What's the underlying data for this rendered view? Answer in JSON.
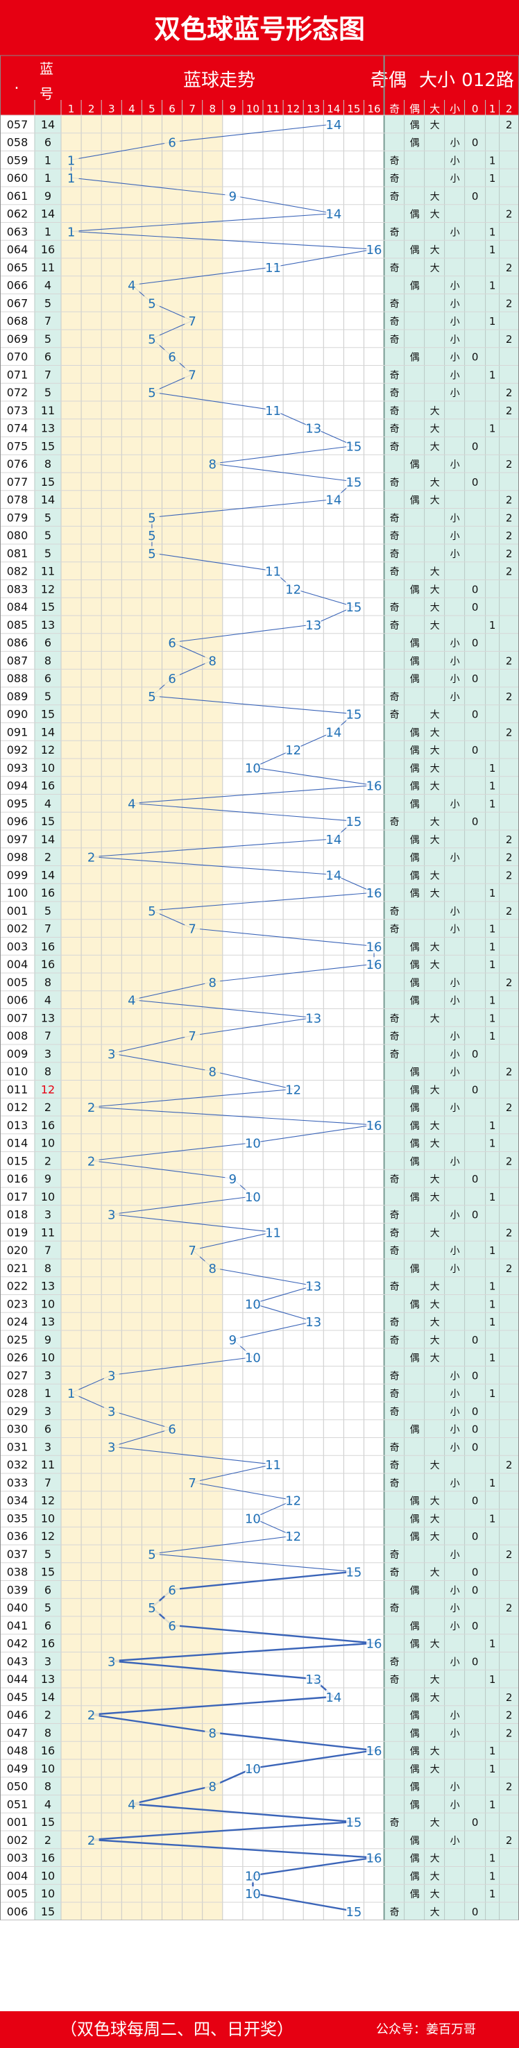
{
  "title": "双色球蓝号形态图",
  "header": {
    "dot": ".",
    "blue": "蓝号",
    "trend": "蓝球走势",
    "odd": "奇",
    "even": "偶",
    "big": "大",
    "small": "小",
    "road": "012路",
    "odd_short": "奇",
    "even_short": "偶",
    "big_short": "大",
    "small_short": "小",
    "r0": "0",
    "r1": "1",
    "r2": "2"
  },
  "column_numbers": [
    "1",
    "2",
    "3",
    "4",
    "5",
    "6",
    "7",
    "8",
    "9",
    "10",
    "11",
    "12",
    "13",
    "14",
    "15",
    "16"
  ],
  "footer": {
    "schedule": "（双色球每周二、四、日开奖）",
    "account_label": "公众号：姜百万哥"
  },
  "colors": {
    "header_red": "#e60012",
    "label_blue": "#1f6fb5",
    "line_blue": "#3a64b8",
    "highlight": "#fdf3d3",
    "teal": "#d8f0ea"
  },
  "rows": [
    {
      "issue": "057",
      "blue": "14"
    },
    {
      "issue": "058",
      "blue": "6"
    },
    {
      "issue": "059",
      "blue": "1"
    },
    {
      "issue": "060",
      "blue": "1"
    },
    {
      "issue": "061",
      "blue": "9"
    },
    {
      "issue": "062",
      "blue": "14"
    },
    {
      "issue": "063",
      "blue": "1"
    },
    {
      "issue": "064",
      "blue": "16"
    },
    {
      "issue": "065",
      "blue": "11"
    },
    {
      "issue": "066",
      "blue": "4"
    },
    {
      "issue": "067",
      "blue": "5"
    },
    {
      "issue": "068",
      "blue": "7"
    },
    {
      "issue": "069",
      "blue": "5"
    },
    {
      "issue": "070",
      "blue": "6"
    },
    {
      "issue": "071",
      "blue": "7"
    },
    {
      "issue": "072",
      "blue": "5"
    },
    {
      "issue": "073",
      "blue": "11"
    },
    {
      "issue": "074",
      "blue": "13"
    },
    {
      "issue": "075",
      "blue": "15"
    },
    {
      "issue": "076",
      "blue": "8"
    },
    {
      "issue": "077",
      "blue": "15"
    },
    {
      "issue": "078",
      "blue": "14"
    },
    {
      "issue": "079",
      "blue": "5"
    },
    {
      "issue": "080",
      "blue": "5"
    },
    {
      "issue": "081",
      "blue": "5"
    },
    {
      "issue": "082",
      "blue": "11"
    },
    {
      "issue": "083",
      "blue": "12"
    },
    {
      "issue": "084",
      "blue": "15"
    },
    {
      "issue": "085",
      "blue": "13"
    },
    {
      "issue": "086",
      "blue": "6"
    },
    {
      "issue": "087",
      "blue": "8"
    },
    {
      "issue": "088",
      "blue": "6"
    },
    {
      "issue": "089",
      "blue": "5"
    },
    {
      "issue": "090",
      "blue": "15"
    },
    {
      "issue": "091",
      "blue": "14"
    },
    {
      "issue": "092",
      "blue": "12"
    },
    {
      "issue": "093",
      "blue": "10"
    },
    {
      "issue": "094",
      "blue": "16"
    },
    {
      "issue": "095",
      "blue": "4"
    },
    {
      "issue": "096",
      "blue": "15"
    },
    {
      "issue": "097",
      "blue": "14"
    },
    {
      "issue": "098",
      "blue": "2"
    },
    {
      "issue": "099",
      "blue": "14"
    },
    {
      "issue": "100",
      "blue": "16"
    },
    {
      "issue": "001",
      "blue": "5"
    },
    {
      "issue": "002",
      "blue": "7"
    },
    {
      "issue": "003",
      "blue": "16"
    },
    {
      "issue": "004",
      "blue": "16"
    },
    {
      "issue": "005",
      "blue": "8"
    },
    {
      "issue": "006",
      "blue": "4"
    },
    {
      "issue": "007",
      "blue": "13"
    },
    {
      "issue": "008",
      "blue": "7"
    },
    {
      "issue": "009",
      "blue": "3"
    },
    {
      "issue": "010",
      "blue": "8"
    },
    {
      "issue": "011",
      "blue": "12"
    },
    {
      "issue": "012",
      "blue": "2"
    },
    {
      "issue": "013",
      "blue": "16"
    },
    {
      "issue": "014",
      "blue": "10"
    },
    {
      "issue": "015",
      "blue": "2"
    },
    {
      "issue": "016",
      "blue": "9"
    },
    {
      "issue": "017",
      "blue": "10"
    },
    {
      "issue": "018",
      "blue": "3"
    },
    {
      "issue": "019",
      "blue": "11"
    },
    {
      "issue": "020",
      "blue": "7"
    },
    {
      "issue": "021",
      "blue": "8"
    },
    {
      "issue": "022",
      "blue": "13"
    },
    {
      "issue": "023",
      "blue": "10"
    },
    {
      "issue": "024",
      "blue": "13"
    },
    {
      "issue": "025",
      "blue": "9"
    },
    {
      "issue": "026",
      "blue": "10"
    },
    {
      "issue": "027",
      "blue": "3"
    },
    {
      "issue": "028",
      "blue": "1"
    },
    {
      "issue": "029",
      "blue": "3"
    },
    {
      "issue": "030",
      "blue": "6"
    },
    {
      "issue": "031",
      "blue": "3"
    },
    {
      "issue": "032",
      "blue": "11"
    },
    {
      "issue": "033",
      "blue": "7"
    },
    {
      "issue": "034",
      "blue": "12"
    },
    {
      "issue": "035",
      "blue": "10"
    },
    {
      "issue": "036",
      "blue": "12"
    },
    {
      "issue": "037",
      "blue": "5"
    },
    {
      "issue": "038",
      "blue": "15"
    },
    {
      "issue": "039",
      "blue": "6"
    },
    {
      "issue": "040",
      "blue": "5"
    },
    {
      "issue": "041",
      "blue": "6"
    },
    {
      "issue": "042",
      "blue": "16"
    },
    {
      "issue": "043",
      "blue": "3"
    },
    {
      "issue": "044",
      "blue": "13"
    },
    {
      "issue": "045",
      "blue": "14"
    },
    {
      "issue": "046",
      "blue": "2"
    },
    {
      "issue": "047",
      "blue": "8"
    },
    {
      "issue": "048",
      "blue": "16"
    },
    {
      "issue": "049",
      "blue": "10"
    },
    {
      "issue": "050",
      "blue": "8"
    },
    {
      "issue": "051",
      "blue": "4"
    },
    {
      "issue": "001",
      "blue": "15"
    },
    {
      "issue": "002",
      "blue": "2"
    },
    {
      "issue": "003",
      "blue": "16"
    },
    {
      "issue": "004",
      "blue": "10"
    },
    {
      "issue": "005",
      "blue": "10"
    },
    {
      "issue": "006",
      "blue": "15"
    }
  ]
}
